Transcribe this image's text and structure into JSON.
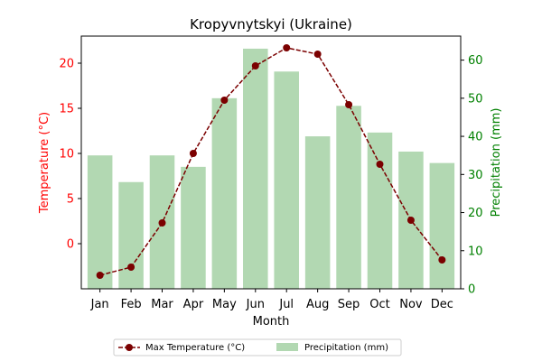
{
  "colors": {
    "line": "#7b0000",
    "bar": "#b2d8b2",
    "left_axis": "#ff0000",
    "right_axis": "#008000",
    "text": "#000000"
  },
  "chart_data": {
    "type": "bar+line",
    "title": "Kropyvnytskyi (Ukraine)",
    "xlabel": "Month",
    "ylabel_left": "Temperature (°C)",
    "ylabel_right": "Precipitation (mm)",
    "categories": [
      "Jan",
      "Feb",
      "Mar",
      "Apr",
      "May",
      "Jun",
      "Jul",
      "Aug",
      "Sep",
      "Oct",
      "Nov",
      "Dec"
    ],
    "series": [
      {
        "name": "Max Temperature (°C)",
        "type": "line",
        "axis": "left",
        "values": [
          -3.5,
          -2.6,
          2.3,
          10.0,
          15.9,
          19.7,
          21.7,
          21.0,
          15.4,
          8.8,
          2.6,
          -1.8
        ]
      },
      {
        "name": "Precipitation (mm)",
        "type": "bar",
        "axis": "right",
        "values": [
          35,
          28,
          35,
          32,
          50,
          63,
          57,
          40,
          48,
          41,
          36,
          33
        ]
      }
    ],
    "ylim_left": [
      -5,
      23
    ],
    "ylim_right": [
      0,
      66.3
    ],
    "yticks_left": [
      "0",
      "5",
      "10",
      "15",
      "20"
    ],
    "yticks_right": [
      "0",
      "10",
      "20",
      "30",
      "40",
      "50",
      "60"
    ],
    "grid": false,
    "legend_position": "bottom-center"
  }
}
